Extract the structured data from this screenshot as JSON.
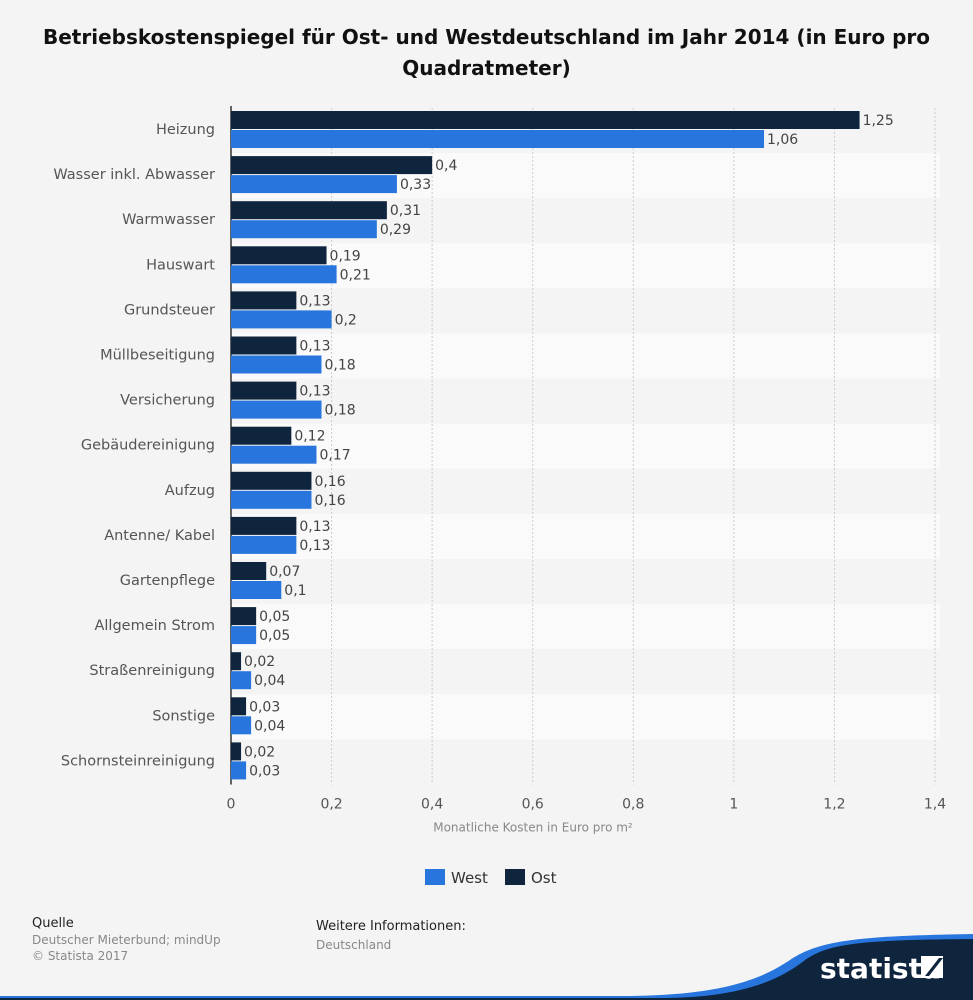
{
  "chart_data": {
    "type": "bar",
    "orientation": "horizontal",
    "title": "Betriebskostenspiegel für Ost- und Westdeutschland im Jahr 2014 (in Euro pro Quadratmeter)",
    "xlabel": "Monatliche Kosten in Euro pro m²",
    "ylabel": "",
    "xlim": [
      0,
      1.4
    ],
    "xticks": [
      "0",
      "0,2",
      "0,4",
      "0,6",
      "0,8",
      "1",
      "1,2",
      "1,4"
    ],
    "grid": true,
    "legend_position": "bottom",
    "categories": [
      "Heizung",
      "Wasser inkl. Abwasser",
      "Warmwasser",
      "Hauswart",
      "Grundsteuer",
      "Müllbeseitigung",
      "Versicherung",
      "Gebäudereinigung",
      "Aufzug",
      "Antenne/ Kabel",
      "Gartenpflege",
      "Allgemein Strom",
      "Straßenreinigung",
      "Sonstige",
      "Schornsteinreinigung"
    ],
    "series": [
      {
        "name": "Ost",
        "color": "#0f253d",
        "values": [
          1.25,
          0.4,
          0.31,
          0.19,
          0.13,
          0.13,
          0.13,
          0.12,
          0.16,
          0.13,
          0.07,
          0.05,
          0.02,
          0.03,
          0.02
        ]
      },
      {
        "name": "West",
        "color": "#2876dd",
        "values": [
          1.06,
          0.33,
          0.29,
          0.21,
          0.2,
          0.18,
          0.18,
          0.17,
          0.16,
          0.13,
          0.1,
          0.05,
          0.04,
          0.04,
          0.03
        ]
      }
    ]
  },
  "legend": [
    {
      "label": "West",
      "color": "#2876dd"
    },
    {
      "label": "Ost",
      "color": "#0f253d"
    }
  ],
  "footer": {
    "source_heading": "Quelle",
    "source": "Deutscher Mieterbund; mindUp",
    "copyright": "© Statista 2017",
    "info_heading": "Weitere Informationen:",
    "info": "Deutschland",
    "logo": "statista"
  }
}
